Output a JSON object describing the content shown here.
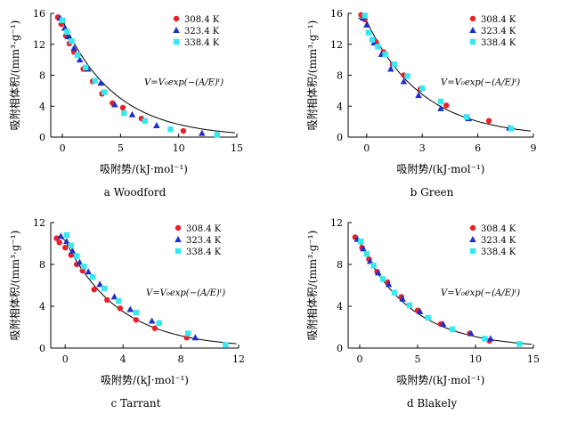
{
  "chart_data": [
    {
      "type": "scatter",
      "caption": "a  Woodford",
      "xlabel": "吸附势/(kJ·mol⁻¹)",
      "ylabel": "吸附相体积/(mm³·g⁻¹)",
      "xlim": [
        -1,
        15
      ],
      "ylim": [
        0,
        16
      ],
      "xticks": [
        0,
        5,
        10,
        15
      ],
      "yticks": [
        0,
        4,
        8,
        12,
        16
      ],
      "xticklabels": [
        "0",
        "5",
        "10",
        "15"
      ],
      "yticklabels": [
        "0",
        "4",
        "8",
        "12",
        "16"
      ],
      "formula": "V=V₀exp(−(A/E)ᵗ)",
      "series": [
        {
          "name": "308.4 K",
          "marker": "circle",
          "color": "#e8202a",
          "x": [
            -0.4,
            -0.1,
            0.3,
            0.6,
            1.0,
            1.8,
            2.6,
            3.4,
            4.3,
            5.2,
            6.8,
            10.4
          ],
          "y": [
            15.5,
            14.6,
            13.1,
            12.1,
            11.0,
            8.8,
            7.2,
            5.6,
            4.4,
            3.8,
            2.4,
            0.8
          ]
        },
        {
          "name": "323.4 K",
          "marker": "triangle",
          "color": "#2030c8",
          "x": [
            -0.2,
            0.2,
            0.5,
            1.0,
            1.5,
            2.2,
            3.3,
            4.5,
            6.0,
            8.1,
            12.0
          ],
          "y": [
            15.4,
            14.1,
            13.0,
            11.5,
            10.0,
            8.8,
            7.0,
            4.2,
            2.9,
            1.5,
            0.5
          ]
        },
        {
          "name": "338.4 K",
          "marker": "square",
          "color": "#36e8f0",
          "x": [
            0.0,
            0.4,
            0.8,
            1.3,
            2.0,
            2.8,
            3.6,
            5.3,
            7.1,
            9.3,
            13.3
          ],
          "y": [
            15.1,
            13.6,
            12.4,
            10.6,
            9.0,
            7.3,
            5.8,
            3.1,
            2.1,
            1.0,
            0.3
          ]
        }
      ],
      "fit": {
        "V0": 15.2,
        "E": 4.5,
        "t": 1.0
      },
      "legend": "top-right"
    },
    {
      "type": "scatter",
      "caption": "b  Green",
      "xlabel": "吸附势/(kJ·mol⁻¹)",
      "ylabel": "吸附相体积/(mm³·g⁻¹)",
      "xlim": [
        -1,
        9
      ],
      "ylim": [
        0,
        16
      ],
      "xticks": [
        0,
        3,
        6,
        9
      ],
      "yticks": [
        0,
        4,
        8,
        12,
        16
      ],
      "xticklabels": [
        "0",
        "3",
        "6",
        "9"
      ],
      "yticklabels": [
        "0",
        "4",
        "8",
        "12",
        "16"
      ],
      "formula": "V=V₀exp(−(A/E)ᵗ)",
      "series": [
        {
          "name": "308.4 K",
          "marker": "circle",
          "color": "#e8202a",
          "x": [
            -0.3,
            -0.1,
            0.5,
            0.9,
            1.4,
            2.0,
            2.9,
            4.3,
            6.6
          ],
          "y": [
            15.8,
            15.2,
            12.3,
            11.0,
            9.4,
            8.0,
            6.2,
            4.1,
            2.1
          ]
        },
        {
          "name": "323.4 K",
          "marker": "triangle",
          "color": "#2030c8",
          "x": [
            -0.2,
            0.0,
            0.4,
            0.8,
            1.3,
            2.0,
            2.8,
            4.0,
            5.5,
            7.7
          ],
          "y": [
            15.4,
            14.5,
            12.2,
            10.7,
            8.8,
            7.2,
            5.4,
            3.7,
            2.4,
            1.2
          ]
        },
        {
          "name": "338.4 K",
          "marker": "square",
          "color": "#36e8f0",
          "x": [
            -0.1,
            0.1,
            0.3,
            0.6,
            1.0,
            1.5,
            2.2,
            3.0,
            4.0,
            5.4,
            7.8
          ],
          "y": [
            15.7,
            13.5,
            12.6,
            11.7,
            10.7,
            9.4,
            7.9,
            6.3,
            4.6,
            2.6,
            1.1
          ]
        }
      ],
      "fit": {
        "V0": 15.0,
        "E": 3.0,
        "t": 1.0
      },
      "legend": "top-right"
    },
    {
      "type": "scatter",
      "caption": "c  Tarrant",
      "xlabel": "吸附势/(kJ·mol⁻¹)",
      "ylabel": "吸附相体积/(mm³·g⁻¹)",
      "xlim": [
        -1,
        12
      ],
      "ylim": [
        0,
        12
      ],
      "xticks": [
        0,
        4,
        8,
        12
      ],
      "yticks": [
        0,
        4,
        8,
        12
      ],
      "xticklabels": [
        "0",
        "4",
        "8",
        "12"
      ],
      "yticklabels": [
        "0",
        "4",
        "8",
        "12"
      ],
      "formula": "V=V₀exp(−(A/E)ᵗ)",
      "series": [
        {
          "name": "308.4 K",
          "marker": "circle",
          "color": "#e8202a",
          "x": [
            -0.6,
            -0.4,
            0.0,
            0.4,
            0.8,
            1.2,
            2.0,
            2.9,
            3.8,
            4.9,
            6.2,
            8.4
          ],
          "y": [
            10.5,
            10.1,
            9.6,
            8.9,
            8.0,
            7.4,
            5.6,
            4.6,
            3.8,
            2.7,
            1.9,
            1.0
          ]
        },
        {
          "name": "323.4 K",
          "marker": "triangle",
          "color": "#2030c8",
          "x": [
            -0.3,
            0.1,
            0.5,
            1.0,
            1.6,
            2.4,
            3.4,
            4.5,
            6.0,
            9.0
          ],
          "y": [
            10.7,
            10.2,
            9.3,
            8.2,
            7.3,
            6.1,
            4.9,
            3.7,
            2.6,
            1.0
          ]
        },
        {
          "name": "338.4 K",
          "marker": "square",
          "color": "#36e8f0",
          "x": [
            0.1,
            0.4,
            0.8,
            1.3,
            1.9,
            2.7,
            3.7,
            4.9,
            6.5,
            8.5,
            11.1
          ],
          "y": [
            10.8,
            9.8,
            8.8,
            7.8,
            6.8,
            5.7,
            4.5,
            3.4,
            2.4,
            1.4,
            0.3
          ]
        }
      ],
      "fit": {
        "V0": 10.3,
        "E": 3.7,
        "t": 1.0
      },
      "legend": "top-right"
    },
    {
      "type": "scatter",
      "caption": "d  Blakely",
      "xlabel": "吸附势/(kJ·mol⁻¹)",
      "ylabel": "吸附相体积/(mm³·g⁻¹)",
      "xlim": [
        -1,
        15
      ],
      "ylim": [
        0,
        12
      ],
      "xticks": [
        0,
        5,
        10,
        15
      ],
      "yticks": [
        0,
        4,
        8,
        12
      ],
      "xticklabels": [
        "0",
        "5",
        "10",
        "15"
      ],
      "yticklabels": [
        "0",
        "4",
        "8",
        "12"
      ],
      "formula": "V=V₀exp(−(A/E)ᵗ)",
      "series": [
        {
          "name": "308.4 K",
          "marker": "circle",
          "color": "#e8202a",
          "x": [
            -0.4,
            0.2,
            0.8,
            1.5,
            2.4,
            3.6,
            5.0,
            7.0,
            9.5,
            11.2
          ],
          "y": [
            10.6,
            9.6,
            8.5,
            7.3,
            6.3,
            4.9,
            3.6,
            2.3,
            1.4,
            0.7
          ]
        },
        {
          "name": "323.4 K",
          "marker": "triangle",
          "color": "#2030c8",
          "x": [
            -0.2,
            0.3,
            0.9,
            1.6,
            2.5,
            3.7,
            5.2,
            7.2,
            9.6,
            11.3
          ],
          "y": [
            10.4,
            9.5,
            8.3,
            7.2,
            6.1,
            4.7,
            3.5,
            2.3,
            1.4,
            0.9
          ]
        },
        {
          "name": "338.4 K",
          "marker": "square",
          "color": "#36e8f0",
          "x": [
            0.1,
            0.6,
            1.2,
            2.0,
            3.0,
            4.3,
            5.9,
            8.0,
            10.8,
            13.8
          ],
          "y": [
            10.2,
            9.0,
            7.9,
            6.6,
            5.3,
            4.1,
            2.9,
            1.8,
            0.9,
            0.4
          ]
        }
      ],
      "fit": {
        "V0": 10.1,
        "E": 4.5,
        "t": 1.0
      },
      "legend": "top-right"
    }
  ]
}
